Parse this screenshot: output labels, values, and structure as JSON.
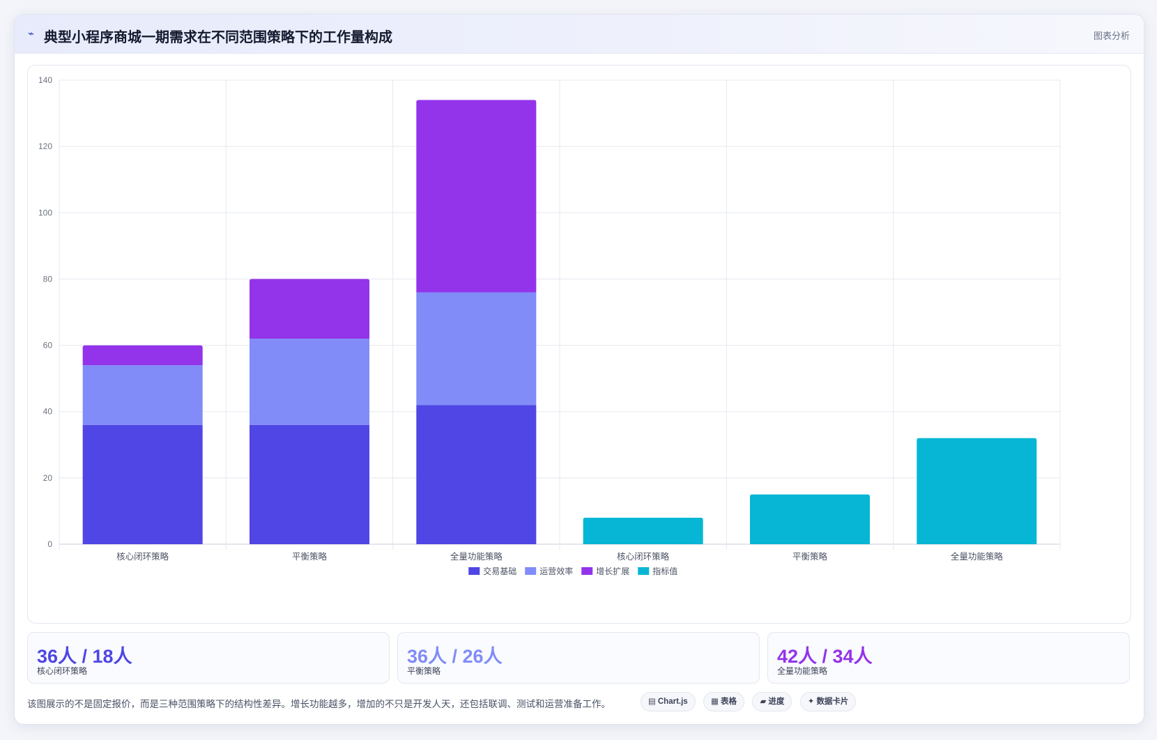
{
  "header": {
    "icon": "chart-icon",
    "title": "典型小程序商城一期需求在不同范围策略下的工作量构成",
    "tag": "图表分析"
  },
  "colors": {
    "trade": "#4f46e5",
    "ops": "#818cf8",
    "growth": "#9333ea",
    "metric": "#06b6d4"
  },
  "chart_data": {
    "type": "bar",
    "stacked": true,
    "categories": [
      "核心闭环策略",
      "平衡策略",
      "全量功能策略",
      "核心闭环策略",
      "平衡策略",
      "全量功能策略"
    ],
    "series": [
      {
        "name": "交易基础",
        "color": "#4f46e5",
        "values": [
          36,
          36,
          42,
          0,
          0,
          0
        ]
      },
      {
        "name": "运营效率",
        "color": "#818cf8",
        "values": [
          18,
          26,
          34,
          0,
          0,
          0
        ]
      },
      {
        "name": "增长扩展",
        "color": "#9333ea",
        "values": [
          6,
          18,
          58,
          0,
          0,
          0
        ]
      },
      {
        "name": "指标值",
        "color": "#06b6d4",
        "values": [
          0,
          0,
          0,
          8,
          15,
          32
        ]
      }
    ],
    "ylim": [
      0,
      140
    ],
    "yticks": [
      0,
      20,
      40,
      60,
      80,
      100,
      120,
      140
    ],
    "grid": true,
    "legend_position": "bottom"
  },
  "stats": [
    {
      "value": "36人 / 18人",
      "label": "核心闭环策略",
      "color": "#4f46e5"
    },
    {
      "value": "36人 / 26人",
      "label": "平衡策略",
      "color": "#818cf8"
    },
    {
      "value": "42人 / 34人",
      "label": "全量功能策略",
      "color": "#9333ea"
    }
  ],
  "footnote": "该图展示的不是固定报价，而是三种范围策略下的结构性差异。增长功能越多，增加的不只是开发人天，还包括联调、测试和运营准备工作。",
  "chips": [
    {
      "icon": "▤",
      "icon_name": "chart-icon",
      "label": "Chart.js"
    },
    {
      "icon": "▦",
      "icon_name": "table-icon",
      "label": "表格"
    },
    {
      "icon": "▰",
      "icon_name": "progress-icon",
      "label": "进度"
    },
    {
      "icon": "✦",
      "icon_name": "sparkle-icon",
      "label": "数据卡片"
    }
  ]
}
